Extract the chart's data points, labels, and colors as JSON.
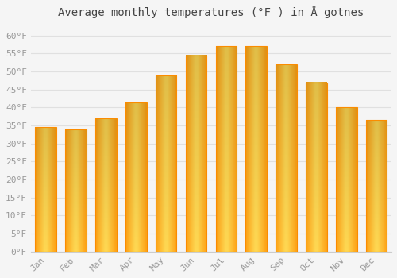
{
  "title": "Average monthly temperatures (°F ) in Å gotnes",
  "months": [
    "Jan",
    "Feb",
    "Mar",
    "Apr",
    "May",
    "Jun",
    "Jul",
    "Aug",
    "Sep",
    "Oct",
    "Nov",
    "Dec"
  ],
  "values": [
    34.5,
    34.0,
    37.0,
    41.5,
    49.0,
    54.5,
    57.0,
    57.0,
    52.0,
    47.0,
    40.0,
    36.5
  ],
  "bar_color_main": "#FFA726",
  "bar_color_light": "#FFD54F",
  "bar_color_edge": "#FB8C00",
  "ylim": [
    0,
    63
  ],
  "yticks": [
    0,
    5,
    10,
    15,
    20,
    25,
    30,
    35,
    40,
    45,
    50,
    55,
    60
  ],
  "ytick_labels": [
    "0°F",
    "5°F",
    "10°F",
    "15°F",
    "20°F",
    "25°F",
    "30°F",
    "35°F",
    "40°F",
    "45°F",
    "50°F",
    "55°F",
    "60°F"
  ],
  "background_color": "#f5f5f5",
  "grid_color": "#e0e0e0",
  "title_fontsize": 10,
  "tick_fontsize": 8,
  "tick_color": "#999999",
  "bar_width": 0.7
}
